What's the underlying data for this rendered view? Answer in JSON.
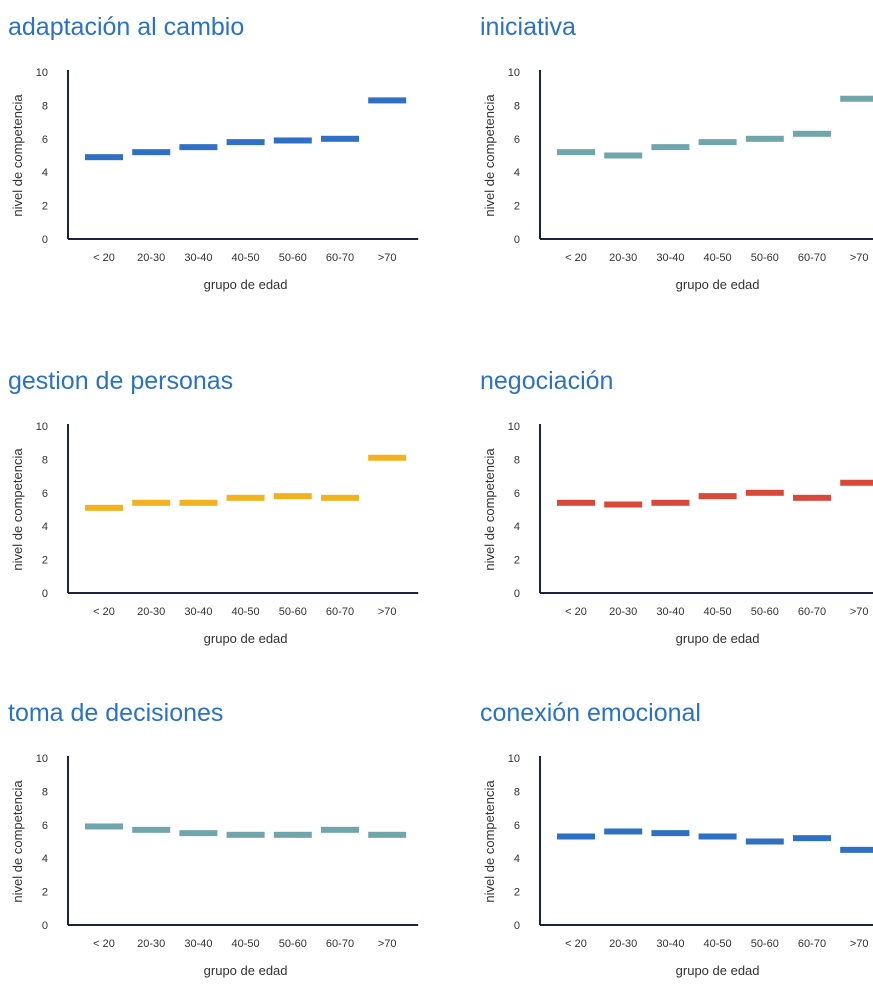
{
  "chart_data": [
    {
      "type": "bar",
      "title": "adaptación al cambio",
      "xlabel": "grupo de edad",
      "ylabel": "nivel de competencia",
      "ylim": [
        0,
        10
      ],
      "yticks": [
        "0",
        "2",
        "4",
        "6",
        "8",
        "10"
      ],
      "categories": [
        "< 20",
        "20-30",
        "30-40",
        "40-50",
        "50-60",
        "60-70",
        ">70"
      ],
      "values": [
        4.9,
        5.2,
        5.5,
        5.8,
        5.9,
        6.0,
        8.3
      ],
      "color": "#2f6fc4",
      "grid": false
    },
    {
      "type": "bar",
      "title": "iniciativa",
      "xlabel": "grupo de edad",
      "ylabel": "nivel de competencia",
      "ylim": [
        0,
        10
      ],
      "yticks": [
        "0",
        "2",
        "4",
        "6",
        "8",
        "10"
      ],
      "categories": [
        "< 20",
        "20-30",
        "30-40",
        "40-50",
        "50-60",
        "60-70",
        ">70"
      ],
      "values": [
        5.2,
        5.0,
        5.5,
        5.8,
        6.0,
        6.3,
        8.4
      ],
      "color": "#6fa5ab",
      "grid": false
    },
    {
      "type": "bar",
      "title": "gestion de personas",
      "xlabel": "grupo de edad",
      "ylabel": "nivel de competencia",
      "ylim": [
        0,
        10
      ],
      "yticks": [
        "0",
        "2",
        "4",
        "6",
        "8",
        "10"
      ],
      "categories": [
        "< 20",
        "20-30",
        "30-40",
        "40-50",
        "50-60",
        "60-70",
        ">70"
      ],
      "values": [
        5.1,
        5.4,
        5.4,
        5.7,
        5.8,
        5.7,
        8.1
      ],
      "color": "#f2b21e",
      "grid": false
    },
    {
      "type": "bar",
      "title": "negociación",
      "xlabel": "grupo de edad",
      "ylabel": "nivel de competencia",
      "ylim": [
        0,
        10
      ],
      "yticks": [
        "0",
        "2",
        "4",
        "6",
        "8",
        "10"
      ],
      "categories": [
        "< 20",
        "20-30",
        "30-40",
        "40-50",
        "50-60",
        "60-70",
        ">70"
      ],
      "values": [
        5.4,
        5.3,
        5.4,
        5.8,
        6.0,
        5.7,
        6.6
      ],
      "color": "#d9493a",
      "grid": false
    },
    {
      "type": "bar",
      "title": "toma de decisiones",
      "xlabel": "grupo de edad",
      "ylabel": "nivel de competencia",
      "ylim": [
        0,
        10
      ],
      "yticks": [
        "0",
        "2",
        "4",
        "6",
        "8",
        "10"
      ],
      "categories": [
        "< 20",
        "20-30",
        "30-40",
        "40-50",
        "50-60",
        "60-70",
        ">70"
      ],
      "values": [
        5.9,
        5.7,
        5.5,
        5.4,
        5.4,
        5.7,
        5.4
      ],
      "color": "#6fa5ab",
      "grid": false
    },
    {
      "type": "bar",
      "title": "conexión emocional",
      "xlabel": "grupo de edad",
      "ylabel": "nivel de competencia",
      "ylim": [
        0,
        10
      ],
      "yticks": [
        "0",
        "2",
        "4",
        "6",
        "8",
        "10"
      ],
      "categories": [
        "< 20",
        "20-30",
        "30-40",
        "40-50",
        "50-60",
        "60-70",
        ">70"
      ],
      "values": [
        5.3,
        5.6,
        5.5,
        5.3,
        5.0,
        5.2,
        4.5
      ],
      "color": "#2f6fc4",
      "grid": false
    }
  ],
  "style": {
    "title_color": "#2a72c8",
    "axis_color": "#1c2340",
    "text_color": "#333333"
  }
}
